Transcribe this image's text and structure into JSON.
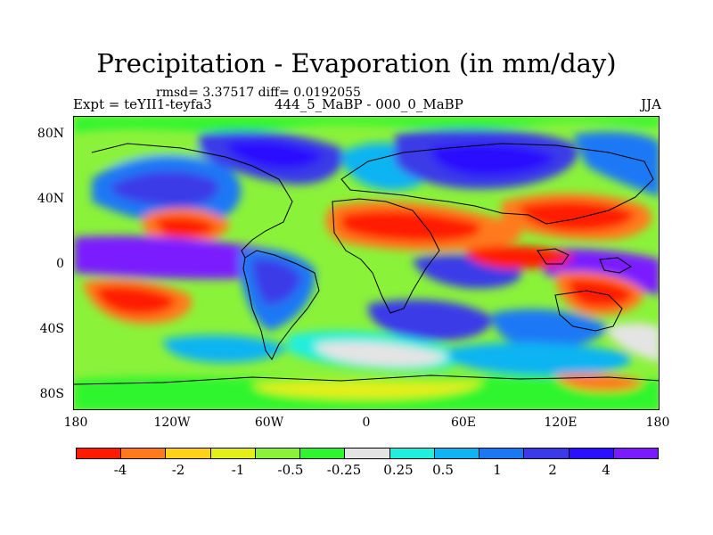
{
  "header": {
    "title": "Precipitation - Evaporation (in mm/day)",
    "stats": "rmsd= 3.37517 diff= 0.0192055",
    "experiment": "Expt = teYII1-teyfa3",
    "period": "444_5_MaBP - 000_0_MaBP",
    "season": "JJA"
  },
  "axes": {
    "y_ticks": [
      "80N",
      "40N",
      "0",
      "40S",
      "80S"
    ],
    "x_ticks": [
      "180",
      "120W",
      "60W",
      "0",
      "60E",
      "120E",
      "180"
    ]
  },
  "colorbar": {
    "labels": [
      "-4",
      "-2",
      "-1",
      "-0.5",
      "-0.25",
      "0.25",
      "0.5",
      "1",
      "2",
      "4"
    ],
    "colors": [
      "#ff1a00",
      "#ff7a1a",
      "#ffd21a",
      "#e4ef1a",
      "#8bf23a",
      "#2ef52e",
      "#e4e4e4",
      "#22eedd",
      "#10b4f2",
      "#1a78f5",
      "#3a3ae8",
      "#2a10ff",
      "#7a1aff"
    ]
  },
  "map": {
    "background_color": "#8bf23a",
    "coast_color": "#000000"
  }
}
